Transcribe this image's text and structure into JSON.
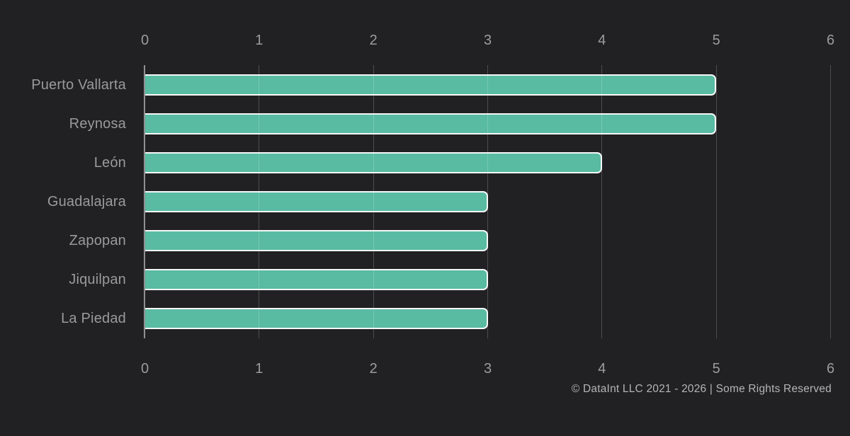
{
  "chart_data": {
    "type": "bar",
    "orientation": "horizontal",
    "title": "",
    "categories": [
      "Puerto Vallarta",
      "Reynosa",
      "León",
      "Guadalajara",
      "Zapopan",
      "Jiquilpan",
      "La Piedad"
    ],
    "values": [
      5,
      5,
      4,
      3,
      3,
      3,
      3
    ],
    "xlabel": "",
    "ylabel": "",
    "xlim": [
      0,
      6
    ],
    "x_ticks": [
      0,
      1,
      2,
      3,
      4,
      5,
      6
    ],
    "tick_label_positions": "top-and-bottom",
    "grid": true,
    "legend": false,
    "colors": {
      "background": "#212124",
      "bar_fill": "#58bba2",
      "bar_border": "#f7f7f7",
      "gridline": "rgba(255,255,255,0.20)",
      "axis_line": "rgba(255,255,255,0.50)",
      "category_label": "#9a9a9a",
      "tick_label": "#9c9c9c",
      "footer_text": "#b5b5b5"
    }
  },
  "footer": {
    "text": "© DataInt LLC 2021 - 2026 | Some Rights Reserved"
  }
}
